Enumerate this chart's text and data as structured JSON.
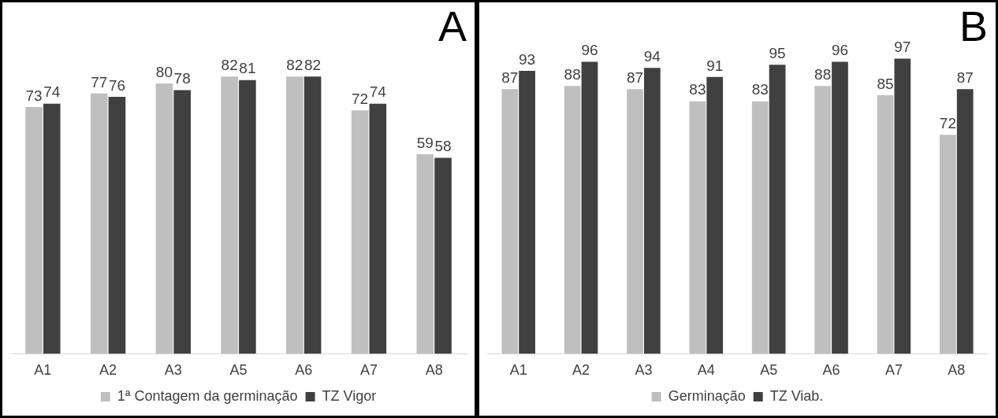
{
  "chart_data": [
    {
      "type": "bar",
      "title": "A",
      "categories": [
        "A1",
        "A2",
        "A3",
        "A5",
        "A6",
        "A7",
        "A8"
      ],
      "legend": "bottom",
      "data_labels": true,
      "series": [
        {
          "name": "1ª Contagem da germinação",
          "color": "#bfbfbf",
          "values": [
            73,
            77,
            80,
            82,
            82,
            72,
            59
          ]
        },
        {
          "name": "TZ Vigor",
          "color": "#404040",
          "values": [
            74,
            76,
            78,
            81,
            82,
            74,
            58
          ]
        }
      ]
    },
    {
      "type": "bar",
      "title": "B",
      "categories": [
        "A1",
        "A2",
        "A3",
        "A4",
        "A5",
        "A6",
        "A7",
        "A8"
      ],
      "legend": "bottom",
      "data_labels": true,
      "series": [
        {
          "name": "Germinação",
          "color": "#bfbfbf",
          "values": [
            87,
            88,
            87,
            83,
            83,
            88,
            85,
            72
          ]
        },
        {
          "name": "TZ Viab.",
          "color": "#404040",
          "values": [
            93,
            96,
            94,
            91,
            95,
            96,
            97,
            87
          ]
        }
      ]
    }
  ]
}
